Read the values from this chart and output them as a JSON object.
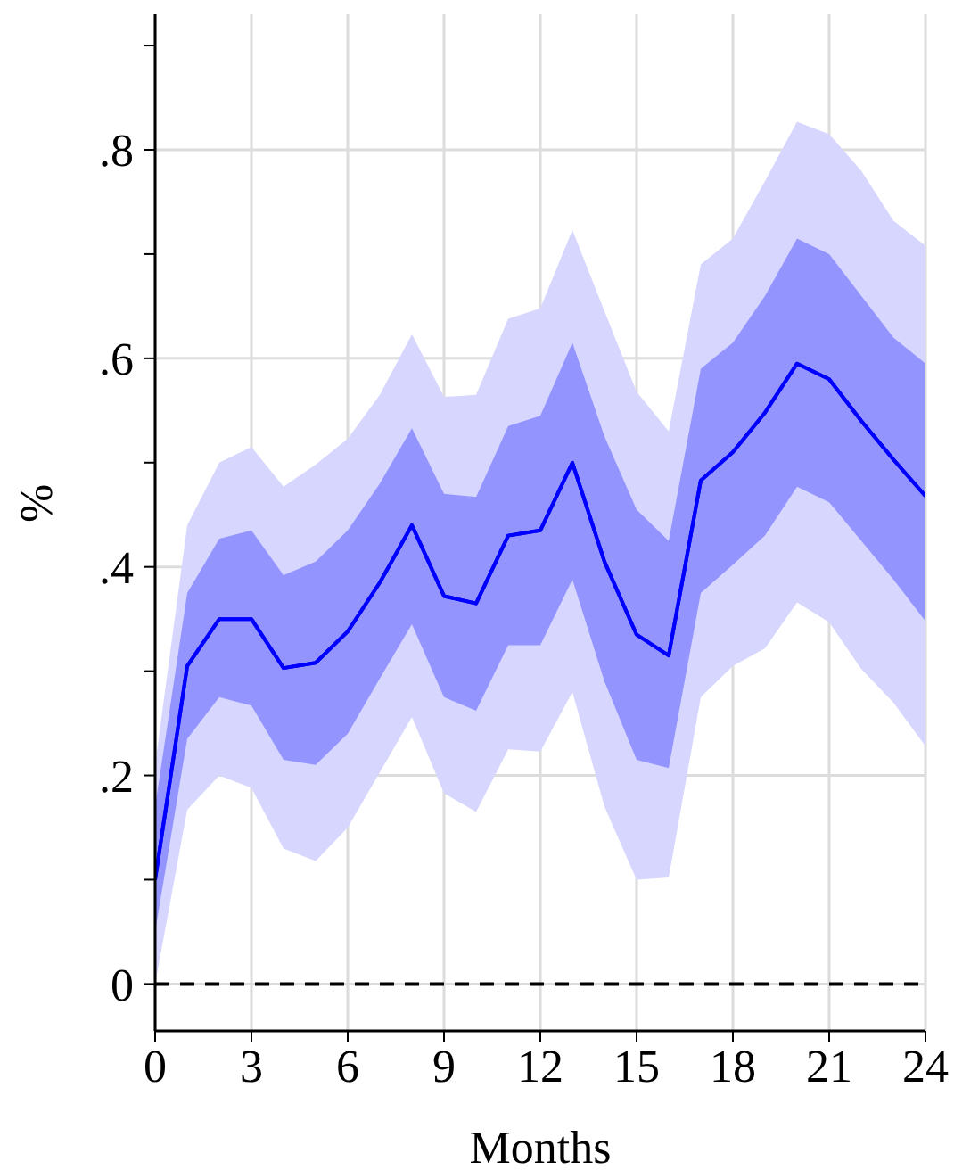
{
  "chart_data": {
    "type": "line",
    "xlabel": "Months",
    "ylabel": "%",
    "x": [
      0,
      1,
      2,
      3,
      4,
      5,
      6,
      7,
      8,
      9,
      10,
      11,
      12,
      13,
      14,
      15,
      16,
      17,
      18,
      19,
      20,
      21,
      22,
      23,
      24
    ],
    "series": [
      {
        "color": "#0000ff",
        "values": [
          0.1,
          0.305,
          0.35,
          0.35,
          0.303,
          0.308,
          0.338,
          0.385,
          0.44,
          0.372,
          0.365,
          0.43,
          0.435,
          0.5,
          0.405,
          0.335,
          0.315,
          0.483,
          0.51,
          0.548,
          0.595,
          0.58,
          0.54,
          0.503,
          0.468
        ],
        "lower": [
          0,
          0.167,
          0.2,
          0.188,
          0.13,
          0.118,
          0.15,
          0.203,
          0.256,
          0.183,
          0.165,
          0.225,
          0.223,
          0.28,
          0.17,
          0.1,
          0.102,
          0.275,
          0.305,
          0.322,
          0.366,
          0.347,
          0.302,
          0.27,
          0.228
        ],
        "upper": [
          0.21,
          0.44,
          0.5,
          0.515,
          0.477,
          0.498,
          0.523,
          0.565,
          0.623,
          0.563,
          0.565,
          0.638,
          0.648,
          0.723,
          0.645,
          0.568,
          0.53,
          0.69,
          0.715,
          0.77,
          0.827,
          0.815,
          0.78,
          0.732,
          0.708
        ]
      },
      {
        "color": "#0000ff",
        "values": [
          0.1,
          0.305,
          0.35,
          0.35,
          0.303,
          0.308,
          0.338,
          0.385,
          0.44,
          0.372,
          0.365,
          0.43,
          0.435,
          0.5,
          0.405,
          0.335,
          0.315,
          0.483,
          0.51,
          0.548,
          0.595,
          0.58,
          0.54,
          0.503,
          0.468
        ],
        "lower": [
          0.05,
          0.235,
          0.275,
          0.267,
          0.215,
          0.21,
          0.24,
          0.293,
          0.345,
          0.275,
          0.262,
          0.325,
          0.325,
          0.388,
          0.29,
          0.215,
          0.207,
          0.375,
          0.402,
          0.43,
          0.477,
          0.462,
          0.425,
          0.388,
          0.348
        ],
        "upper": [
          0.17,
          0.375,
          0.427,
          0.435,
          0.392,
          0.405,
          0.435,
          0.48,
          0.533,
          0.47,
          0.467,
          0.535,
          0.545,
          0.615,
          0.525,
          0.455,
          0.425,
          0.59,
          0.615,
          0.66,
          0.715,
          0.7,
          0.66,
          0.62,
          0.595
        ]
      }
    ],
    "xlim": [
      0,
      24
    ],
    "xticks": [
      0,
      3,
      6,
      9,
      12,
      15,
      18,
      21,
      24
    ],
    "ylim": [
      -0.045,
      0.93
    ],
    "yticks": [
      0,
      {
        "value": 0.1,
        "label": null
      },
      {
        "value": 0.2,
        "label": ".2"
      },
      {
        "value": 0.3,
        "label": null
      },
      {
        "value": 0.4,
        "label": ".4"
      },
      {
        "value": 0.5,
        "label": null
      },
      {
        "value": 0.6,
        "label": ".6"
      },
      {
        "value": 0.7,
        "label": null
      },
      {
        "value": 0.8,
        "label": ".8"
      },
      {
        "value": 0.9,
        "label": null
      }
    ],
    "grid": true,
    "marker": "none",
    "line_style": "solid",
    "ref_lines": [
      {
        "axis": "y",
        "value": 0,
        "label": null,
        "color": "#000000",
        "line_style": "dashed"
      }
    ]
  }
}
